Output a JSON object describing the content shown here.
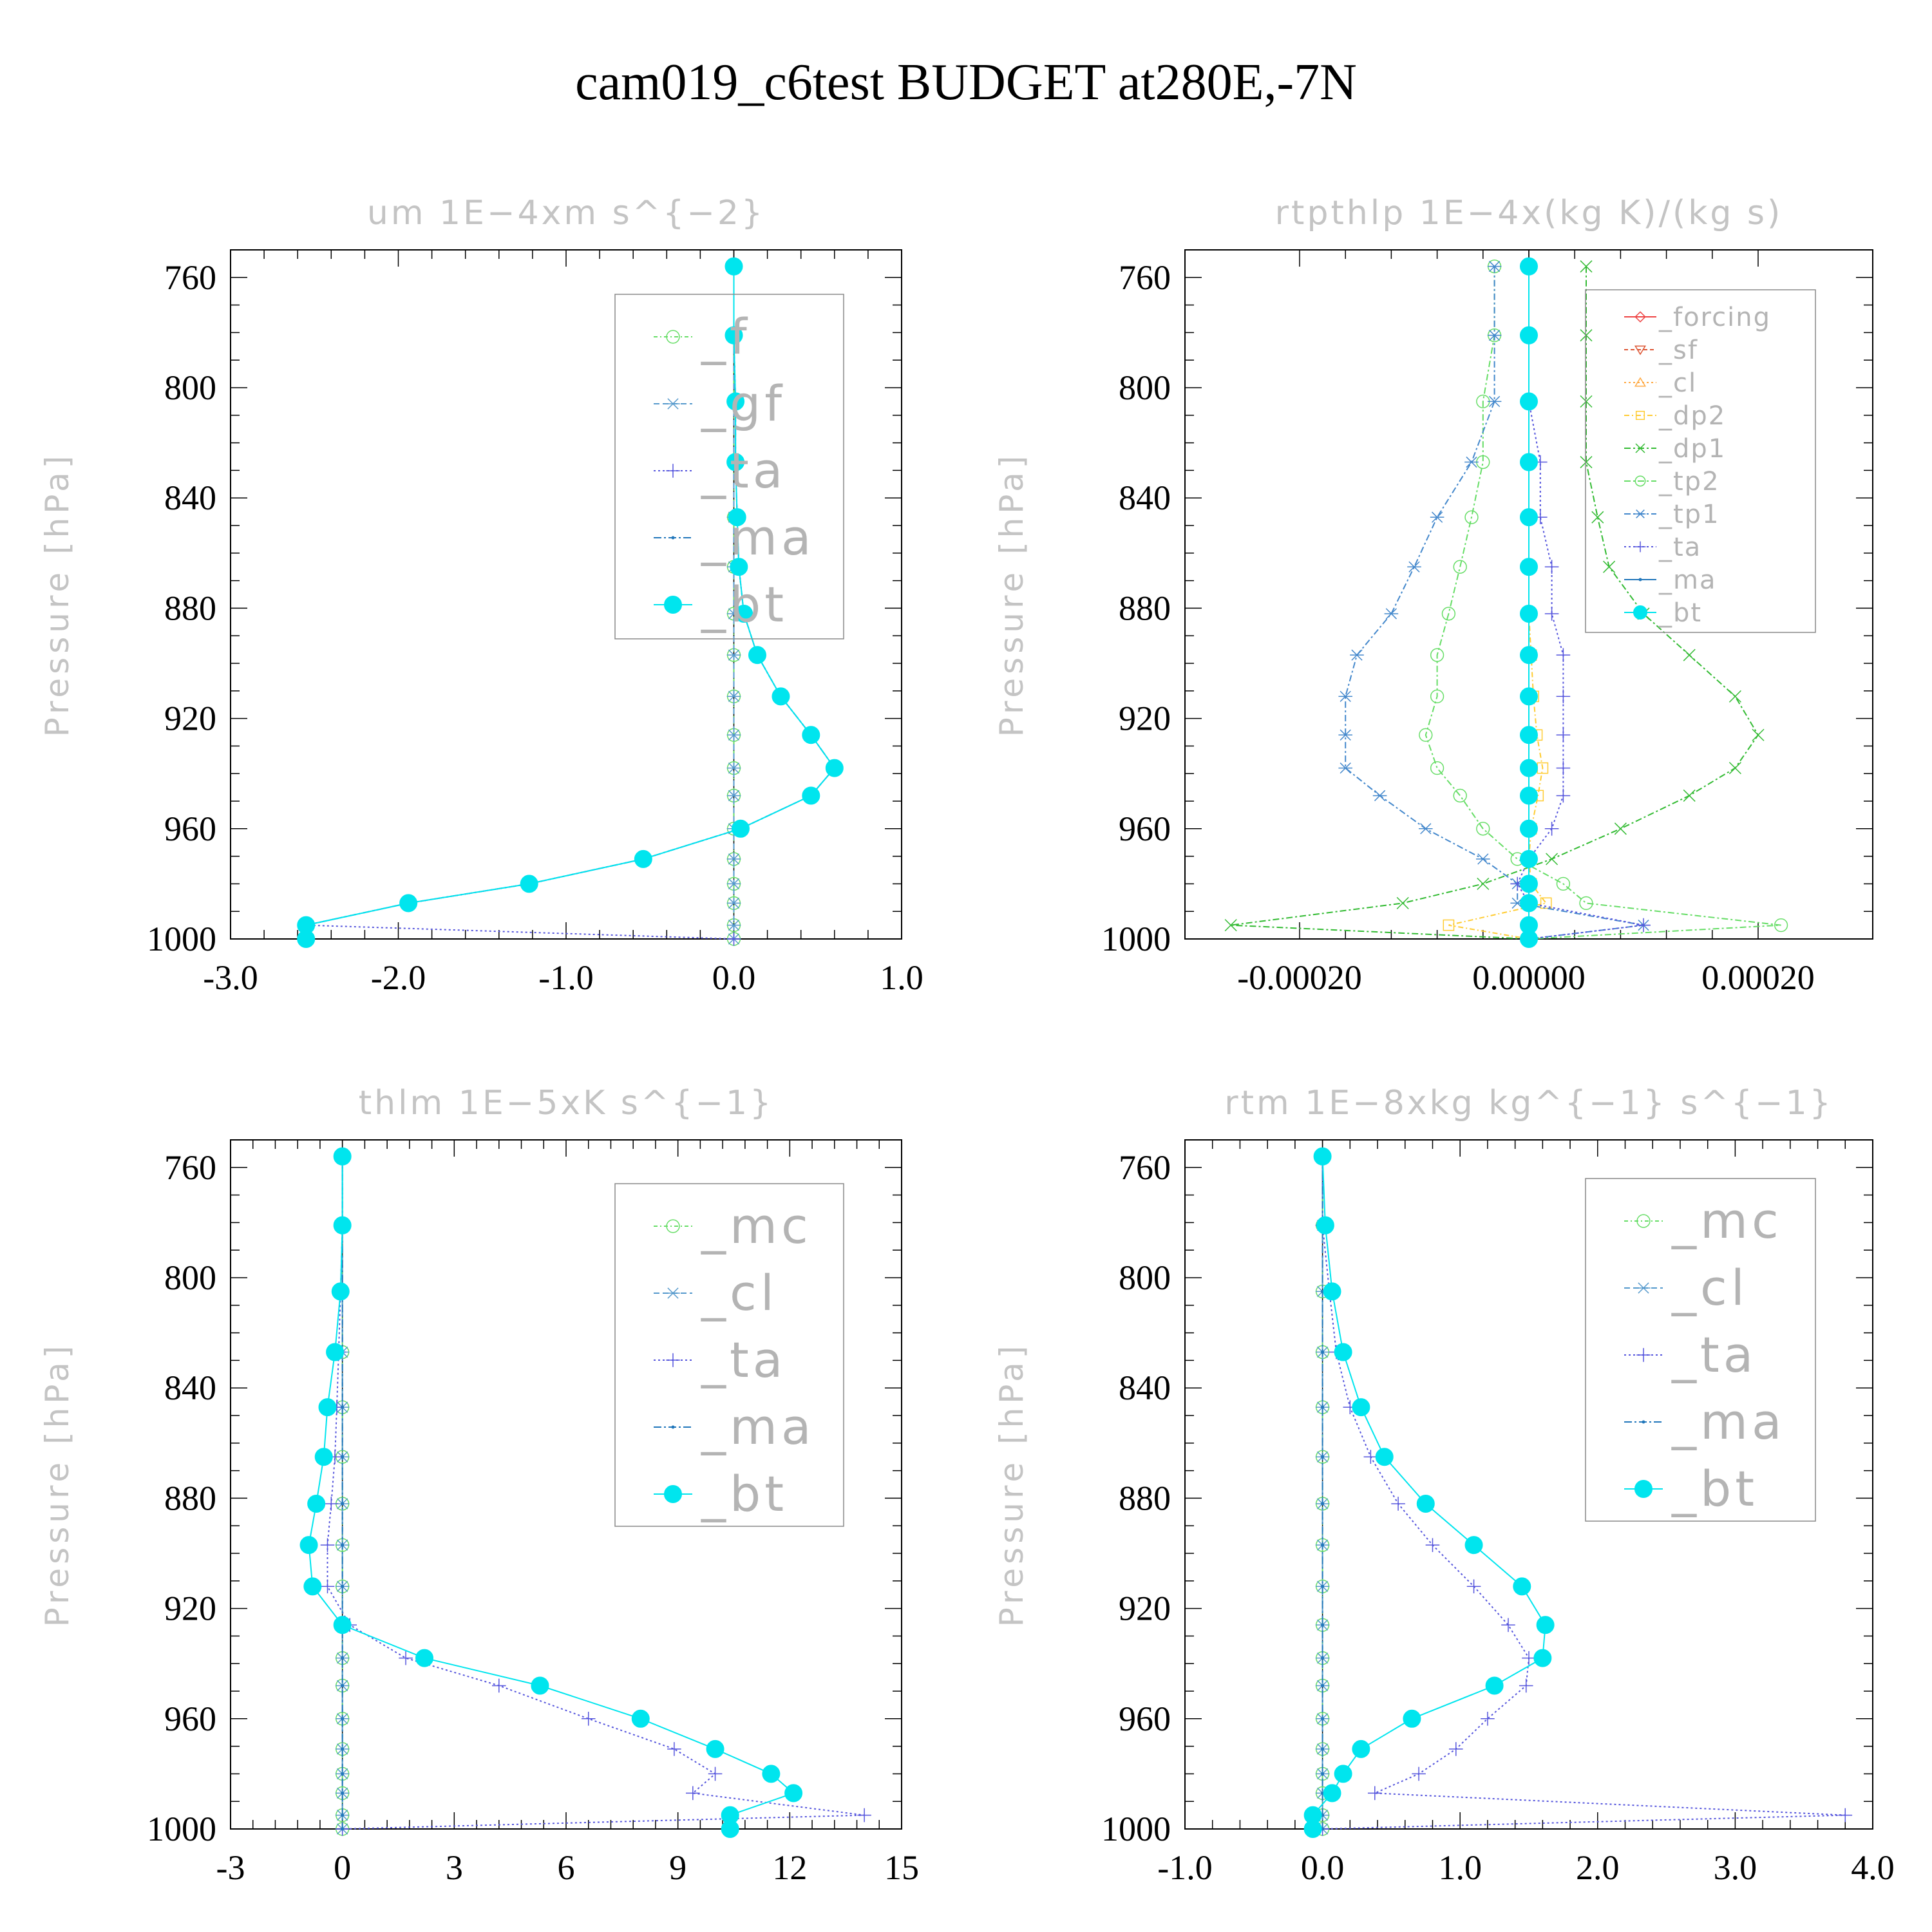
{
  "page": {
    "title": "cam019_c6test  BUDGET at280E,-7N",
    "ylabel": "Pressure [hPa]"
  },
  "chart_data": [
    {
      "id": "um",
      "type": "line",
      "title": "um   1E−4xm s^{−2}",
      "xlabel": "",
      "ylabel": "Pressure [hPa]",
      "xlim": [
        -3.0,
        1.0
      ],
      "xticks": [
        -3.0,
        -2.0,
        -1.0,
        0.0,
        1.0
      ],
      "xtick_labels": [
        "-3.0",
        "-2.0",
        "-1.0",
        "0.0",
        "1.0"
      ],
      "ylim": [
        1000,
        750
      ],
      "yticks": [
        760,
        800,
        840,
        880,
        920,
        960,
        1000
      ],
      "ytick_labels": [
        "760",
        "800",
        "840",
        "880",
        "920",
        "960",
        "1000"
      ],
      "legend_position": "top-right",
      "legend_fontsize": "large",
      "levels": [
        756,
        781,
        805,
        827,
        847,
        865,
        882,
        897,
        912,
        926,
        938,
        948,
        960,
        971,
        980,
        987,
        995,
        1000
      ],
      "series": [
        {
          "name": "_f",
          "color": "#66dd66",
          "marker": "circle",
          "dash": "6 4 2 4",
          "values": [
            0,
            0,
            0,
            0,
            0,
            0,
            0,
            0,
            0,
            0,
            0,
            0,
            0,
            0,
            0,
            0,
            0,
            0
          ]
        },
        {
          "name": "_gf",
          "color": "#5599cc",
          "marker": "star",
          "dash": "9 5",
          "values": [
            0,
            0,
            0,
            0,
            0,
            0,
            0,
            0,
            0,
            0,
            0,
            0,
            0,
            0,
            0,
            0,
            0,
            0
          ]
        },
        {
          "name": "_ta",
          "color": "#5555dd",
          "marker": "plus",
          "dash": "3 4",
          "values": [
            0.0,
            0.0,
            0.01,
            0.01,
            0.02,
            0.03,
            0.06,
            0.14,
            0.28,
            0.46,
            0.6,
            0.46,
            0.04,
            -0.54,
            -1.22,
            -1.94,
            -2.55,
            0.0
          ]
        },
        {
          "name": "_ma",
          "color": "#2277bb",
          "marker": "dot",
          "dash": "12 4 3 4",
          "values": [
            0.0,
            0.0,
            0.01,
            0.01,
            0.02,
            0.03,
            0.06,
            0.14,
            0.28,
            0.46,
            0.6,
            0.46,
            0.04,
            -0.54,
            -1.22,
            -1.94,
            -2.55,
            -2.55
          ]
        },
        {
          "name": "_bt",
          "color": "#00e5ee",
          "marker": "filled-circle",
          "dash": "",
          "values": [
            0.0,
            0.0,
            0.01,
            0.01,
            0.02,
            0.03,
            0.06,
            0.14,
            0.28,
            0.46,
            0.6,
            0.46,
            0.04,
            -0.54,
            -1.22,
            -1.94,
            -2.55,
            -2.55
          ]
        }
      ]
    },
    {
      "id": "rtpthlp",
      "type": "line",
      "title": "rtpthlp   1E−4x(kg K)/(kg s)",
      "xlabel": "",
      "ylabel": "Pressure [hPa]",
      "xlim": [
        -0.0003,
        0.0003
      ],
      "xticks": [
        -0.0002,
        0.0,
        0.0002
      ],
      "xtick_labels": [
        "-0.00020",
        "0.00000",
        "0.00020"
      ],
      "ylim": [
        1000,
        750
      ],
      "yticks": [
        760,
        800,
        840,
        880,
        920,
        960,
        1000
      ],
      "ytick_labels": [
        "760",
        "800",
        "840",
        "880",
        "920",
        "960",
        "1000"
      ],
      "legend_position": "top-right",
      "legend_fontsize": "small",
      "levels": [
        756,
        781,
        805,
        827,
        847,
        865,
        882,
        897,
        912,
        926,
        938,
        948,
        960,
        971,
        980,
        987,
        995,
        1000
      ],
      "series": [
        {
          "name": "_forcing",
          "color": "#ee4444",
          "marker": "diamond",
          "dash": "",
          "values": [
            0,
            0,
            0,
            0,
            0,
            0,
            0,
            0,
            0,
            0,
            0,
            0,
            0,
            0,
            0,
            0,
            0,
            0
          ]
        },
        {
          "name": "_sf",
          "color": "#dd5533",
          "marker": "triangle-down",
          "dash": "6 4",
          "values": [
            0,
            0,
            0,
            0,
            0,
            0,
            0,
            0,
            0,
            0,
            0,
            0,
            0,
            0,
            0,
            0,
            0,
            0
          ]
        },
        {
          "name": "_cl",
          "color": "#ffaa44",
          "marker": "triangle-up",
          "dash": "3 4",
          "values": [
            0,
            0,
            0,
            0,
            0,
            0,
            0,
            0,
            0,
            0,
            0,
            0,
            0,
            0,
            0,
            0,
            0,
            0
          ]
        },
        {
          "name": "_dp2",
          "color": "#ffcc33",
          "marker": "square",
          "dash": "8 4 2 4",
          "values": [
            0,
            0,
            0,
            0,
            0,
            0,
            0,
            2e-06,
            4e-06,
            7e-06,
            1.2e-05,
            8e-06,
            2e-06,
            0.0,
            2e-06,
            1.5e-05,
            -7e-05,
            0.0
          ]
        },
        {
          "name": "_dp1",
          "color": "#33bb33",
          "marker": "x",
          "dash": "10 4 3 4",
          "values": [
            5e-05,
            5e-05,
            5e-05,
            5e-05,
            6e-05,
            7e-05,
            0.0001,
            0.00014,
            0.00018,
            0.0002,
            0.00018,
            0.00014,
            8e-05,
            2e-05,
            -4e-05,
            -0.00011,
            -0.00026,
            0.0
          ]
        },
        {
          "name": "_tp2",
          "color": "#66dd66",
          "marker": "circle",
          "dash": "10 4 3 4",
          "values": [
            -3e-05,
            -3e-05,
            -4e-05,
            -4e-05,
            -5e-05,
            -6e-05,
            -7e-05,
            -8e-05,
            -8e-05,
            -9e-05,
            -8e-05,
            -6e-05,
            -4e-05,
            -1e-05,
            3e-05,
            5e-05,
            0.00022,
            0.0
          ]
        },
        {
          "name": "_tp1",
          "color": "#4488cc",
          "marker": "star",
          "dash": "10 4 3 4",
          "values": [
            -3e-05,
            -3e-05,
            -3e-05,
            -5e-05,
            -8e-05,
            -0.0001,
            -0.00012,
            -0.00015,
            -0.00016,
            -0.00016,
            -0.00016,
            -0.00013,
            -9e-05,
            -4e-05,
            -1e-05,
            -1e-05,
            0.0001,
            0.0
          ]
        },
        {
          "name": "_ta",
          "color": "#5555dd",
          "marker": "plus",
          "dash": "3 4",
          "values": [
            0.0,
            0.0,
            0.0,
            1e-05,
            1e-05,
            2e-05,
            2e-05,
            3e-05,
            3e-05,
            3e-05,
            3e-05,
            3e-05,
            2e-05,
            0.0,
            -1e-05,
            0.0,
            0.0001,
            0.0
          ]
        },
        {
          "name": "_ma",
          "color": "#2277bb",
          "marker": "dot",
          "dash": "",
          "values": [
            0,
            0,
            0,
            0,
            0,
            0,
            0,
            0,
            0,
            0,
            0,
            0,
            0,
            0,
            0,
            0,
            0,
            0
          ]
        },
        {
          "name": "_bt",
          "color": "#00e5ee",
          "marker": "filled-circle",
          "dash": "",
          "values": [
            0,
            0,
            0,
            0,
            0,
            0,
            0,
            0,
            0,
            0,
            0,
            0,
            0,
            0,
            0,
            0,
            0,
            0
          ]
        }
      ]
    },
    {
      "id": "thlm",
      "type": "line",
      "title": "thlm   1E−5xK s^{−1}",
      "xlabel": "",
      "ylabel": "Pressure [hPa]",
      "xlim": [
        -3,
        15
      ],
      "xticks": [
        -3,
        0,
        3,
        6,
        9,
        12,
        15
      ],
      "xtick_labels": [
        "-3",
        "0",
        "3",
        "6",
        "9",
        "12",
        "15"
      ],
      "ylim": [
        1000,
        750
      ],
      "yticks": [
        760,
        800,
        840,
        880,
        920,
        960,
        1000
      ],
      "ytick_labels": [
        "760",
        "800",
        "840",
        "880",
        "920",
        "960",
        "1000"
      ],
      "legend_position": "top-right",
      "legend_fontsize": "large",
      "levels": [
        756,
        781,
        805,
        827,
        847,
        865,
        882,
        897,
        912,
        926,
        938,
        948,
        960,
        971,
        980,
        987,
        995,
        1000
      ],
      "series": [
        {
          "name": "_mc",
          "color": "#66dd66",
          "marker": "circle",
          "dash": "6 4 2 4",
          "values": [
            0,
            0,
            0,
            0,
            0,
            0,
            0,
            0,
            0,
            0,
            0,
            0,
            0,
            0,
            0,
            0,
            0,
            0
          ]
        },
        {
          "name": "_cl",
          "color": "#5599cc",
          "marker": "star",
          "dash": "9 5",
          "values": [
            0,
            0,
            0,
            0,
            0,
            0,
            0,
            0,
            0,
            0,
            0,
            0,
            0,
            0,
            0,
            0,
            0,
            0
          ]
        },
        {
          "name": "_ta",
          "color": "#5555dd",
          "marker": "plus",
          "dash": "3 4",
          "values": [
            0.0,
            0.0,
            -0.05,
            -0.1,
            -0.15,
            -0.2,
            -0.3,
            -0.4,
            -0.4,
            0.2,
            1.7,
            4.2,
            6.6,
            8.9,
            10.0,
            9.4,
            14.0,
            0.0
          ]
        },
        {
          "name": "_ma",
          "color": "#2277bb",
          "marker": "dot",
          "dash": "12 4 3 4",
          "values": [
            0,
            0,
            0,
            0,
            0,
            0,
            0,
            0,
            0,
            0,
            0,
            0,
            0,
            0,
            0,
            0,
            0,
            0
          ]
        },
        {
          "name": "_bt",
          "color": "#00e5ee",
          "marker": "filled-circle",
          "dash": "",
          "values": [
            0.0,
            0.0,
            -0.05,
            -0.2,
            -0.4,
            -0.5,
            -0.7,
            -0.9,
            -0.8,
            0.0,
            2.2,
            5.3,
            8.0,
            10.0,
            11.5,
            12.1,
            10.4,
            10.4
          ]
        }
      ]
    },
    {
      "id": "rtm",
      "type": "line",
      "title": "rtm   1E−8xkg kg^{−1} s^{−1}",
      "xlabel": "",
      "ylabel": "Pressure [hPa]",
      "xlim": [
        -1.0,
        4.0
      ],
      "xticks": [
        -1.0,
        0.0,
        1.0,
        2.0,
        3.0,
        4.0
      ],
      "xtick_labels": [
        "-1.0",
        "0.0",
        "1.0",
        "2.0",
        "3.0",
        "4.0"
      ],
      "ylim": [
        1000,
        750
      ],
      "yticks": [
        760,
        800,
        840,
        880,
        920,
        960,
        1000
      ],
      "ytick_labels": [
        "760",
        "800",
        "840",
        "880",
        "920",
        "960",
        "1000"
      ],
      "legend_position": "top-right",
      "legend_fontsize": "large",
      "levels": [
        756,
        781,
        805,
        827,
        847,
        865,
        882,
        897,
        912,
        926,
        938,
        948,
        960,
        971,
        980,
        987,
        995,
        1000
      ],
      "series": [
        {
          "name": "_mc",
          "color": "#66dd66",
          "marker": "circle",
          "dash": "6 4 2 4",
          "values": [
            0,
            0,
            0,
            0,
            0,
            0,
            0,
            0,
            0,
            0,
            0,
            0,
            0,
            0,
            0,
            0,
            0,
            0
          ]
        },
        {
          "name": "_cl",
          "color": "#5599cc",
          "marker": "star",
          "dash": "9 5",
          "values": [
            0,
            0,
            0,
            0,
            0,
            0,
            0,
            0,
            0,
            0,
            0,
            0,
            0,
            0,
            0,
            0,
            0,
            0
          ]
        },
        {
          "name": "_ta",
          "color": "#5555dd",
          "marker": "plus",
          "dash": "3 4",
          "values": [
            0.0,
            0.0,
            0.05,
            0.1,
            0.2,
            0.35,
            0.55,
            0.8,
            1.1,
            1.35,
            1.5,
            1.48,
            1.2,
            0.97,
            0.7,
            0.38,
            3.8,
            0.0
          ]
        },
        {
          "name": "_ma",
          "color": "#2277bb",
          "marker": "dot",
          "dash": "12 4 3 4",
          "values": [
            0,
            0,
            0,
            0,
            0,
            0,
            0,
            0,
            0,
            0,
            0,
            0,
            0,
            0,
            0,
            0,
            0,
            0
          ]
        },
        {
          "name": "_bt",
          "color": "#00e5ee",
          "marker": "filled-circle",
          "dash": "",
          "values": [
            0.0,
            0.02,
            0.07,
            0.15,
            0.28,
            0.45,
            0.75,
            1.1,
            1.45,
            1.62,
            1.6,
            1.25,
            0.65,
            0.28,
            0.15,
            0.07,
            -0.07,
            -0.07
          ]
        }
      ]
    }
  ]
}
